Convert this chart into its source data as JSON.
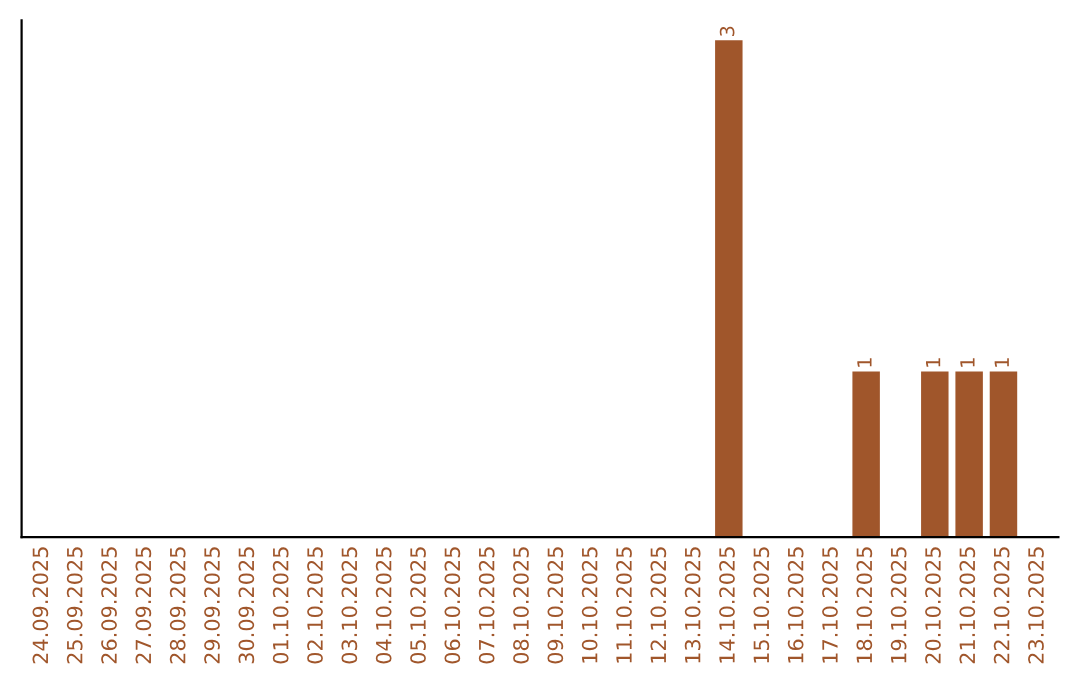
{
  "chart_data": {
    "type": "bar",
    "categories": [
      "24.09.2025",
      "25.09.2025",
      "26.09.2025",
      "27.09.2025",
      "28.09.2025",
      "29.09.2025",
      "30.09.2025",
      "01.10.2025",
      "02.10.2025",
      "03.10.2025",
      "04.10.2025",
      "05.10.2025",
      "06.10.2025",
      "07.10.2025",
      "08.10.2025",
      "09.10.2025",
      "10.10.2025",
      "11.10.2025",
      "12.10.2025",
      "13.10.2025",
      "14.10.2025",
      "15.10.2025",
      "16.10.2025",
      "17.10.2025",
      "18.10.2025",
      "19.10.2025",
      "20.10.2025",
      "21.10.2025",
      "22.10.2025",
      "23.10.2025"
    ],
    "values": [
      null,
      null,
      null,
      null,
      null,
      null,
      null,
      null,
      null,
      null,
      null,
      null,
      null,
      null,
      null,
      null,
      null,
      null,
      null,
      null,
      3,
      null,
      null,
      null,
      1,
      null,
      1,
      1,
      1,
      null
    ],
    "data_labels": true,
    "color": "#a0562b",
    "tick_labels": "x",
    "grid": false,
    "legend": false
  }
}
